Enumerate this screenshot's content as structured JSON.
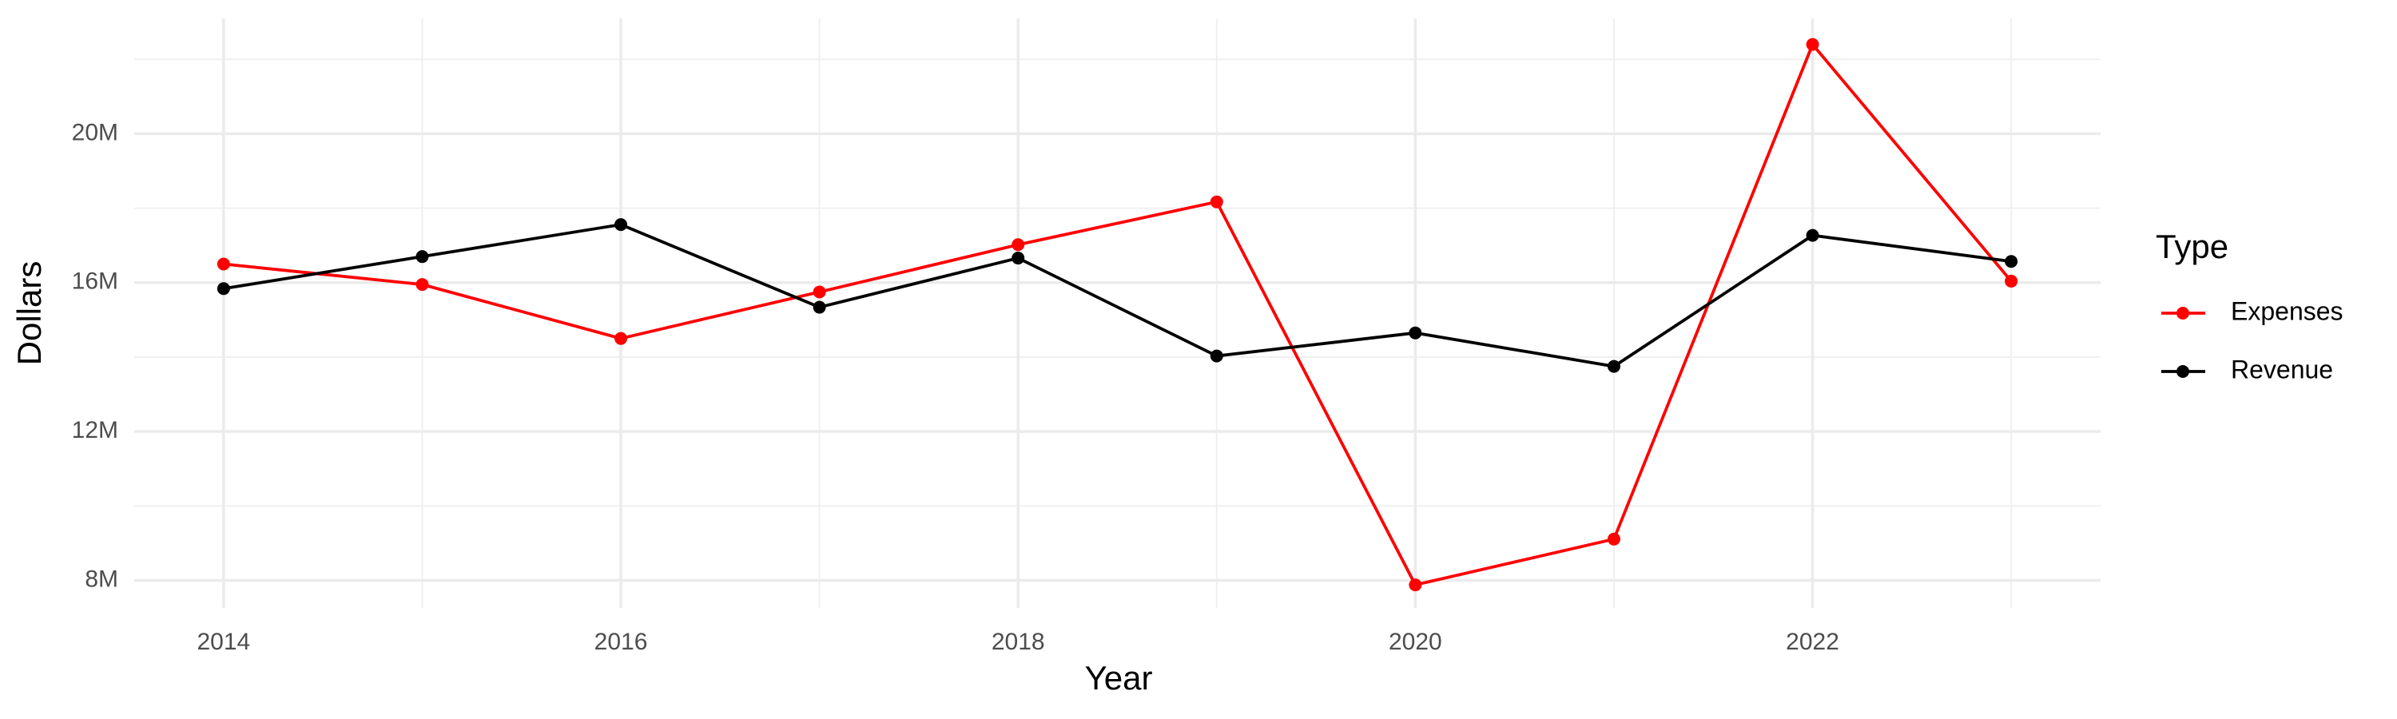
{
  "chart_data": {
    "type": "line",
    "x_label": "Year",
    "y_label": "Dollars",
    "legend_title": "Type",
    "legend_position": "right",
    "grid": true,
    "x": [
      2014,
      2015,
      2016,
      2017,
      2018,
      2019,
      2020,
      2021,
      2022,
      2023
    ],
    "series": [
      {
        "name": "Expenses",
        "color": "#ff0000",
        "values": [
          16500000,
          15950000,
          14500000,
          15750000,
          17020000,
          18170000,
          7880000,
          9110000,
          22400000,
          16040000
        ]
      },
      {
        "name": "Revenue",
        "color": "#000000",
        "values": [
          15840000,
          16700000,
          17560000,
          15340000,
          16660000,
          14030000,
          14650000,
          13750000,
          17270000,
          16570000
        ]
      }
    ],
    "xlim": [
      2013.55,
      2023.45
    ],
    "xticks": [
      2014,
      2016,
      2018,
      2020,
      2022
    ],
    "ylim": [
      7260000,
      23100000
    ],
    "yticks": [
      {
        "value": 8000000,
        "label": "8M"
      },
      {
        "value": 12000000,
        "label": "12M"
      },
      {
        "value": 16000000,
        "label": "16M"
      },
      {
        "value": 20000000,
        "label": "20M"
      }
    ]
  }
}
